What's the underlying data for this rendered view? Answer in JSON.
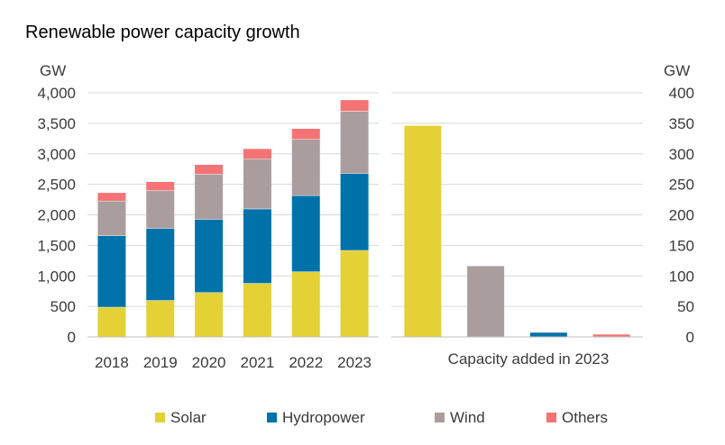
{
  "chart_data": [
    {
      "type": "bar",
      "stacked": true,
      "title": "Renewable power capacity growth",
      "ylabel": "GW",
      "ylim": [
        0,
        4000
      ],
      "yticks": [
        0,
        500,
        1000,
        1500,
        2000,
        2500,
        3000,
        3500,
        4000
      ],
      "ytick_labels": [
        "0",
        "500",
        "1,000",
        "1,500",
        "2,000",
        "2,500",
        "3,000",
        "3,500",
        "4,000"
      ],
      "categories": [
        "2018",
        "2019",
        "2020",
        "2021",
        "2022",
        "2023"
      ],
      "series": [
        {
          "name": "Solar",
          "color": "#e3d136",
          "values": [
            490,
            600,
            730,
            880,
            1070,
            1420
          ]
        },
        {
          "name": "Hydropower",
          "color": "#0072aa",
          "values": [
            1170,
            1180,
            1200,
            1220,
            1250,
            1260
          ]
        },
        {
          "name": "Wind",
          "color": "#aa9d9e",
          "values": [
            570,
            620,
            740,
            820,
            920,
            1020
          ]
        },
        {
          "name": "Others",
          "color": "#f47374",
          "values": [
            130,
            140,
            150,
            160,
            170,
            180
          ]
        }
      ],
      "grid": true
    },
    {
      "type": "bar",
      "xlabel": "Capacity added in 2023",
      "ylabel": "GW",
      "ylim": [
        0,
        400
      ],
      "yticks": [
        0,
        50,
        100,
        150,
        200,
        250,
        300,
        350,
        400
      ],
      "ytick_labels": [
        "0",
        "50",
        "100",
        "150",
        "200",
        "250",
        "300",
        "350",
        "400"
      ],
      "categories": [
        "Solar",
        "Wind",
        "Hydropower",
        "Others"
      ],
      "values": [
        346,
        116,
        7,
        4
      ],
      "colors": [
        "#e3d136",
        "#aa9d9e",
        "#0072aa",
        "#f47374"
      ],
      "grid": true
    }
  ],
  "legend": {
    "position": "bottom",
    "items": [
      {
        "label": "Solar",
        "color": "#e3d136"
      },
      {
        "label": "Hydropower",
        "color": "#0072aa"
      },
      {
        "label": "Wind",
        "color": "#aa9d9e"
      },
      {
        "label": "Others",
        "color": "#f47374"
      }
    ]
  }
}
